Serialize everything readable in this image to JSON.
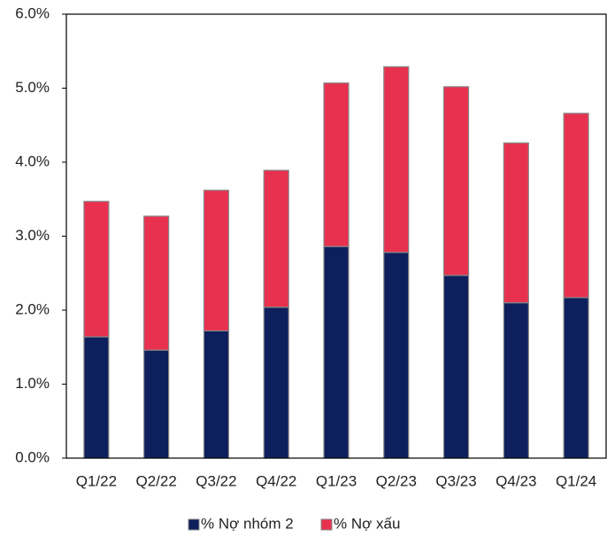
{
  "chart_data": {
    "type": "stacked_bar",
    "categories": [
      "Q1/22",
      "Q2/22",
      "Q3/22",
      "Q4/22",
      "Q1/23",
      "Q2/23",
      "Q3/23",
      "Q4/23",
      "Q1/24"
    ],
    "series": [
      {
        "name": "% Nợ nhóm 2",
        "color": "#0d1f5c",
        "values": [
          1.64,
          1.46,
          1.72,
          2.04,
          2.86,
          2.78,
          2.47,
          2.1,
          2.17
        ]
      },
      {
        "name": "% Nợ xấu",
        "color": "#e8314f",
        "values": [
          1.83,
          1.81,
          1.9,
          1.85,
          2.21,
          2.51,
          2.55,
          2.16,
          2.49
        ]
      }
    ],
    "ylim": [
      0,
      6
    ],
    "yticks": [
      {
        "value": 0,
        "label": "0.0%"
      },
      {
        "value": 1,
        "label": "1.0%"
      },
      {
        "value": 2,
        "label": "2.0%"
      },
      {
        "value": 3,
        "label": "3.0%"
      },
      {
        "value": 4,
        "label": "4.0%"
      },
      {
        "value": 5,
        "label": "5.0%"
      },
      {
        "value": 6,
        "label": "6.0%"
      }
    ],
    "legend": "bottom"
  }
}
